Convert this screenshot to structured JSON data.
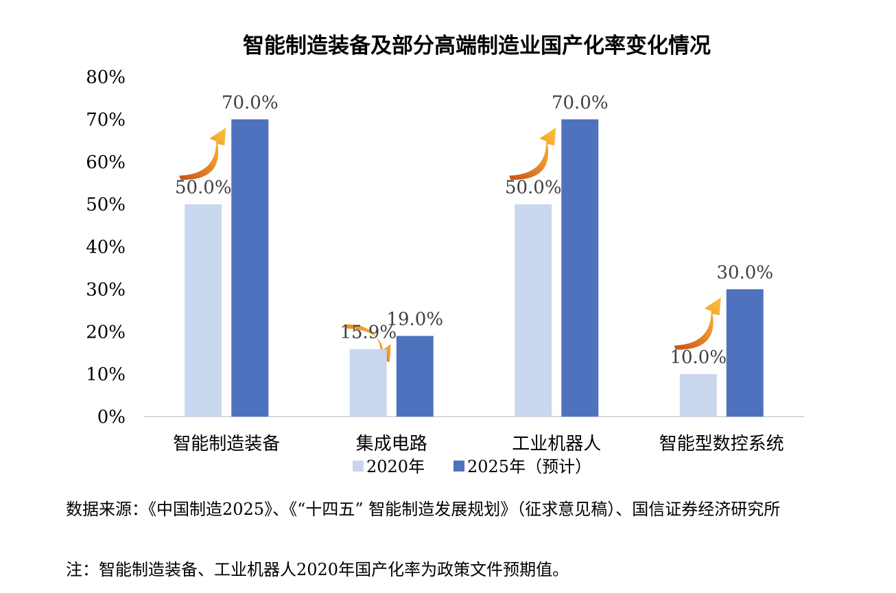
{
  "chart_data": {
    "type": "bar",
    "title": "智能制造装备及部分高端制造业国产化率变化情况",
    "categories": [
      "智能制造装备",
      "集成电路",
      "工业机器人",
      "智能型数控系统"
    ],
    "series": [
      {
        "name": "2020年",
        "values": [
          50.0,
          15.9,
          50.0,
          10.0
        ],
        "labels": [
          "50.0%",
          "15.9%",
          "50.0%",
          "10.0%"
        ],
        "color": "#c9d7ee"
      },
      {
        "name": "2025年（预计）",
        "values": [
          70.0,
          19.0,
          70.0,
          30.0
        ],
        "labels": [
          "70.0%",
          "19.0%",
          "70.0%",
          "30.0%"
        ],
        "color": "#4f72bf"
      }
    ],
    "ylim": [
      0,
      80
    ],
    "yticks": [
      "0%",
      "10%",
      "20%",
      "30%",
      "40%",
      "50%",
      "60%",
      "70%",
      "80%"
    ],
    "legend": "bottom",
    "grid": false,
    "annotations": [
      "up-arrow"
    ]
  },
  "notes": {
    "source": "数据来源：《中国制造2025》、《“十四五” 智能制造发展规划》（征求意见稿）、国信证券经济研究所",
    "footnote": "注：智能制造装备、工业机器人2020年国产化率为政策文件预期值。"
  }
}
